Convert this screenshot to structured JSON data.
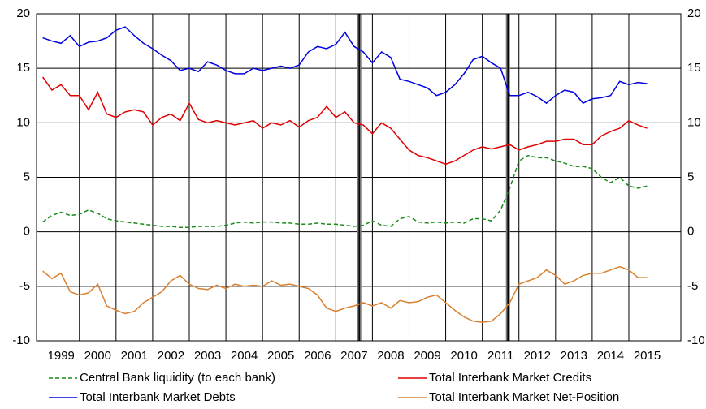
{
  "chart_data": {
    "type": "line",
    "x": [
      1999,
      1999.25,
      1999.5,
      1999.75,
      2000,
      2000.25,
      2000.5,
      2000.75,
      2001,
      2001.25,
      2001.5,
      2001.75,
      2002,
      2002.25,
      2002.5,
      2002.75,
      2003,
      2003.25,
      2003.5,
      2003.75,
      2004,
      2004.25,
      2004.5,
      2004.75,
      2005,
      2005.25,
      2005.5,
      2005.75,
      2006,
      2006.25,
      2006.5,
      2006.75,
      2007,
      2007.25,
      2007.5,
      2007.75,
      2008,
      2008.25,
      2008.5,
      2008.75,
      2009,
      2009.25,
      2009.5,
      2009.75,
      2010,
      2010.25,
      2010.5,
      2010.75,
      2011,
      2011.25,
      2011.5,
      2011.75,
      2012,
      2012.25,
      2012.5,
      2012.75,
      2013,
      2013.25,
      2013.5,
      2013.75,
      2014,
      2014.25,
      2014.5,
      2014.75,
      2015,
      2015.25,
      2015.5
    ],
    "series": [
      {
        "name": "Central Bank liquidity (to each bank)",
        "color": "#1a8a1a",
        "dashed": true,
        "values": [
          0.9,
          1.5,
          1.8,
          1.5,
          1.6,
          2.0,
          1.7,
          1.2,
          1.0,
          0.9,
          0.8,
          0.7,
          0.6,
          0.5,
          0.5,
          0.4,
          0.4,
          0.5,
          0.5,
          0.5,
          0.6,
          0.8,
          0.9,
          0.8,
          0.9,
          0.9,
          0.8,
          0.8,
          0.7,
          0.7,
          0.8,
          0.7,
          0.7,
          0.6,
          0.5,
          0.6,
          1.0,
          0.6,
          0.5,
          1.2,
          1.4,
          0.9,
          0.8,
          0.9,
          0.8,
          0.9,
          0.8,
          1.2,
          1.2,
          1.0,
          2.0,
          4.0,
          6.5,
          7.0,
          6.8,
          6.8,
          6.5,
          6.3,
          6.0,
          6.0,
          5.8,
          5.0,
          4.5,
          5.0,
          4.2,
          4.0,
          4.2
        ]
      },
      {
        "name": "Total Interbank Market Credits",
        "color": "#e00000",
        "values": [
          14.2,
          13.0,
          13.5,
          12.5,
          12.5,
          11.2,
          12.8,
          10.8,
          10.5,
          11.0,
          11.2,
          11.0,
          9.8,
          10.5,
          10.8,
          10.2,
          11.8,
          10.3,
          10.0,
          10.2,
          10.0,
          9.8,
          10.0,
          10.2,
          9.5,
          10.0,
          9.8,
          10.2,
          9.6,
          10.2,
          10.5,
          11.5,
          10.5,
          11.0,
          10.0,
          9.8,
          9.0,
          10.0,
          9.5,
          8.5,
          7.5,
          7.0,
          6.8,
          6.5,
          6.2,
          6.5,
          7.0,
          7.5,
          7.8,
          7.6,
          7.8,
          8.0,
          7.5,
          7.8,
          8.0,
          8.3,
          8.3,
          8.5,
          8.5,
          8.0,
          8.0,
          8.8,
          9.2,
          9.5,
          10.2,
          9.8,
          9.5
        ]
      },
      {
        "name": "Total Interbank Market Debts",
        "color": "#0000e0",
        "values": [
          17.8,
          17.5,
          17.3,
          18.0,
          17.0,
          17.4,
          17.5,
          17.8,
          18.5,
          18.8,
          18.0,
          17.3,
          16.8,
          16.2,
          15.7,
          14.8,
          15.0,
          14.7,
          15.6,
          15.3,
          14.8,
          14.5,
          14.5,
          15.0,
          14.8,
          15.0,
          15.2,
          15.0,
          15.3,
          16.5,
          17.0,
          16.8,
          17.2,
          18.3,
          17.0,
          16.5,
          15.5,
          16.5,
          16.0,
          14.0,
          13.8,
          13.5,
          13.2,
          12.5,
          12.8,
          13.5,
          14.5,
          15.8,
          16.1,
          15.5,
          15.0,
          12.5,
          12.5,
          12.8,
          12.4,
          11.8,
          12.5,
          13.0,
          12.8,
          11.8,
          12.2,
          12.3,
          12.5,
          13.8,
          13.5,
          13.7,
          13.6
        ]
      },
      {
        "name": "Total Interbank Market Net-Position",
        "color": "#d98030",
        "values": [
          -3.6,
          -4.3,
          -3.8,
          -5.5,
          -5.8,
          -5.6,
          -4.8,
          -6.8,
          -7.2,
          -7.5,
          -7.3,
          -6.5,
          -6.0,
          -5.5,
          -4.5,
          -4.0,
          -4.8,
          -5.2,
          -5.3,
          -4.9,
          -5.2,
          -4.8,
          -5.0,
          -4.9,
          -5.0,
          -4.5,
          -4.9,
          -4.8,
          -5.0,
          -5.2,
          -5.8,
          -7.0,
          -7.3,
          -7.0,
          -6.8,
          -6.5,
          -6.8,
          -6.5,
          -7.0,
          -6.3,
          -6.5,
          -6.4,
          -6.0,
          -5.8,
          -6.5,
          -7.2,
          -7.8,
          -8.2,
          -8.3,
          -8.2,
          -7.5,
          -6.5,
          -4.8,
          -4.5,
          -4.2,
          -3.5,
          -4.0,
          -4.8,
          -4.5,
          -4.0,
          -3.8,
          -3.8,
          -3.5,
          -3.2,
          -3.5,
          -4.2,
          -4.2
        ]
      }
    ],
    "xlim": [
      1998.83,
      2016.42
    ],
    "xgrid": [
      2000,
      2001,
      2002,
      2003,
      2004,
      2005,
      2006,
      2007,
      2008,
      2009,
      2010,
      2011,
      2012,
      2013,
      2014,
      2015
    ],
    "xticks": [
      {
        "value": 1999.5,
        "label": "1999"
      },
      {
        "value": 2000.5,
        "label": "2000"
      },
      {
        "value": 2001.5,
        "label": "2001"
      },
      {
        "value": 2002.5,
        "label": "2002"
      },
      {
        "value": 2003.5,
        "label": "2003"
      },
      {
        "value": 2004.5,
        "label": "2004"
      },
      {
        "value": 2005.5,
        "label": "2005"
      },
      {
        "value": 2006.5,
        "label": "2006"
      },
      {
        "value": 2007.5,
        "label": "2007"
      },
      {
        "value": 2008.5,
        "label": "2008"
      },
      {
        "value": 2009.5,
        "label": "2009"
      },
      {
        "value": 2010.5,
        "label": "2010"
      },
      {
        "value": 2011.5,
        "label": "2011"
      },
      {
        "value": 2012.5,
        "label": "2012"
      },
      {
        "value": 2013.5,
        "label": "2013"
      },
      {
        "value": 2014.5,
        "label": "2014"
      },
      {
        "value": 2015.5,
        "label": "2015"
      }
    ],
    "vlines": [
      2007.64,
      2011.7
    ],
    "ylim": [
      -10,
      20
    ],
    "yticks": [
      -10,
      -5,
      0,
      5,
      10,
      15,
      20
    ],
    "y2lim": [
      -10,
      20
    ],
    "y2ticks": [
      -10,
      -5,
      0,
      5,
      10,
      15,
      20
    ],
    "grid": true
  }
}
